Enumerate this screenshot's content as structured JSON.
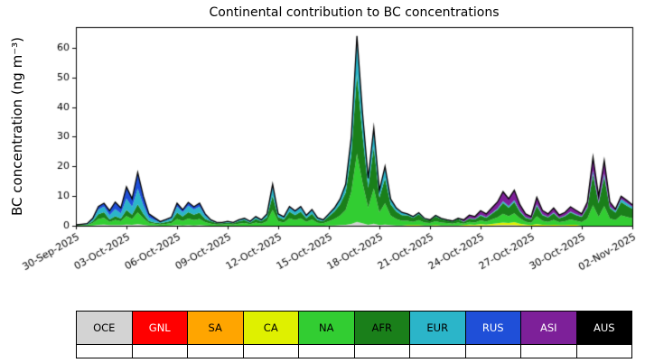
{
  "chart_data": {
    "type": "area",
    "title": "Continental contribution to BC concentrations",
    "ylabel": "BC concentration (ng m⁻³)",
    "xlabel": "",
    "ylim": [
      0,
      67
    ],
    "yticks": [
      0,
      10,
      20,
      30,
      40,
      50,
      60
    ],
    "x_domain_days": [
      0,
      33
    ],
    "points_per_day": 3,
    "grid": false,
    "legend_position": "bottom",
    "outline_color": "#000000",
    "xticks": [
      {
        "day": 0,
        "label": "30-Sep-2025"
      },
      {
        "day": 3,
        "label": "03-Oct-2025"
      },
      {
        "day": 6,
        "label": "06-Oct-2025"
      },
      {
        "day": 9,
        "label": "09-Oct-2025"
      },
      {
        "day": 12,
        "label": "12-Oct-2025"
      },
      {
        "day": 15,
        "label": "15-Oct-2025"
      },
      {
        "day": 18,
        "label": "18-Oct-2025"
      },
      {
        "day": 21,
        "label": "21-Oct-2025"
      },
      {
        "day": 24,
        "label": "24-Oct-2025"
      },
      {
        "day": 27,
        "label": "27-Oct-2025"
      },
      {
        "day": 30,
        "label": "30-Oct-2025"
      },
      {
        "day": 33,
        "label": "02-Nov-2025"
      }
    ],
    "series": [
      {
        "name": "OCE",
        "color": "#d3d3d3",
        "label_color": "#000000",
        "values": [
          0,
          0,
          0,
          0.1,
          0.3,
          0.4,
          0.2,
          0.2,
          0.2,
          0.4,
          0.3,
          0.5,
          0.3,
          0.1,
          0.1,
          0,
          0,
          0.1,
          0.2,
          0.1,
          0.2,
          0.1,
          0.2,
          0.1,
          0,
          0,
          0,
          0,
          0,
          0,
          0,
          0,
          0,
          0,
          0,
          0,
          0,
          0,
          0,
          0,
          0,
          0,
          0,
          0,
          0,
          0.1,
          0.1,
          0.2,
          0.3,
          0.6,
          1.3,
          0.8,
          0.3,
          0.7,
          0.2,
          0.4,
          0.2,
          0.1,
          0.1,
          0,
          0,
          0,
          0,
          0,
          0,
          0,
          0,
          0,
          0,
          0,
          0.1,
          0.1,
          0.1,
          0.1,
          0.1,
          0.2,
          0.2,
          0.2,
          0.2,
          0.1,
          0.1,
          0,
          0,
          0,
          0,
          0,
          0,
          0,
          0,
          0,
          0,
          0,
          0,
          0,
          0,
          0,
          0,
          0,
          0,
          0
        ]
      },
      {
        "name": "GNL",
        "color": "#ff0000",
        "label_color": "#ffffff",
        "values": [
          0,
          0,
          0,
          0,
          0,
          0,
          0,
          0,
          0,
          0,
          0,
          0,
          0,
          0,
          0,
          0,
          0,
          0,
          0,
          0,
          0,
          0,
          0,
          0,
          0,
          0,
          0,
          0,
          0,
          0,
          0,
          0,
          0,
          0,
          0,
          0,
          0,
          0,
          0,
          0,
          0,
          0,
          0,
          0,
          0,
          0,
          0,
          0,
          0,
          0,
          0,
          0,
          0,
          0,
          0,
          0,
          0,
          0,
          0,
          0,
          0,
          0,
          0,
          0,
          0,
          0,
          0,
          0,
          0,
          0,
          0,
          0,
          0,
          0,
          0,
          0,
          0,
          0,
          0,
          0,
          0,
          0,
          0,
          0,
          0,
          0,
          0,
          0,
          0,
          0,
          0,
          0,
          0,
          0,
          0,
          0,
          0,
          0,
          0,
          0
        ]
      },
      {
        "name": "SA",
        "color": "#ffa500",
        "label_color": "#000000",
        "values": [
          0,
          0,
          0,
          0,
          0,
          0,
          0,
          0,
          0,
          0,
          0,
          0,
          0,
          0,
          0,
          0,
          0,
          0,
          0,
          0,
          0,
          0,
          0,
          0,
          0,
          0,
          0,
          0,
          0,
          0,
          0,
          0,
          0,
          0,
          0,
          0,
          0,
          0,
          0,
          0,
          0,
          0,
          0,
          0,
          0,
          0,
          0,
          0,
          0,
          0,
          0,
          0,
          0,
          0,
          0,
          0,
          0,
          0,
          0,
          0,
          0,
          0,
          0,
          0,
          0,
          0,
          0,
          0,
          0,
          0,
          0,
          0,
          0,
          0,
          0,
          0,
          0,
          0,
          0,
          0,
          0,
          0,
          0,
          0,
          0,
          0,
          0,
          0,
          0,
          0,
          0,
          0,
          0,
          0,
          0,
          0,
          0,
          0,
          0,
          0
        ]
      },
      {
        "name": "CA",
        "color": "#dff000",
        "label_color": "#000000",
        "values": [
          0,
          0,
          0,
          0,
          0,
          0,
          0,
          0,
          0,
          0,
          0,
          0,
          0,
          0,
          0,
          0,
          0,
          0,
          0,
          0,
          0,
          0,
          0,
          0,
          0,
          0,
          0,
          0,
          0,
          0,
          0,
          0,
          0,
          0,
          0,
          0,
          0,
          0,
          0,
          0,
          0,
          0,
          0,
          0,
          0,
          0,
          0,
          0,
          0,
          0,
          0,
          0,
          0,
          0,
          0,
          0,
          0,
          0,
          0,
          0.2,
          0.2,
          0.2,
          0.1,
          0.1,
          0.2,
          0.1,
          0.1,
          0.1,
          0.1,
          0.2,
          0.3,
          0.2,
          0.4,
          0.3,
          0.5,
          0.6,
          0.9,
          0.7,
          1.0,
          0.6,
          0.3,
          0.2,
          0.5,
          0.3,
          0.2,
          0.3,
          0.2,
          0.2,
          0.3,
          0.3,
          0,
          0,
          0,
          0,
          0,
          0,
          0,
          0,
          0,
          0
        ]
      },
      {
        "name": "NA",
        "color": "#32cd32",
        "label_color": "#000000",
        "values": [
          0.1,
          0.2,
          0.2,
          0.8,
          2.0,
          2.3,
          1.1,
          1.8,
          1.3,
          2.9,
          2.0,
          4.0,
          2.2,
          0.9,
          0.6,
          0.4,
          0.6,
          0.8,
          2.1,
          1.5,
          2.2,
          1.8,
          2.1,
          1.1,
          0.7,
          0.4,
          0.4,
          0.5,
          0.4,
          0.7,
          0.9,
          0.5,
          1.1,
          0.7,
          1.5,
          5.3,
          1.5,
          1.1,
          2.5,
          1.9,
          2.5,
          1.3,
          2.1,
          1.0,
          0.8,
          1.4,
          2.2,
          3.2,
          5.0,
          10.8,
          23.0,
          13.7,
          5.8,
          11.9,
          4.3,
          7.2,
          3.2,
          2.2,
          1.6,
          1.5,
          1.1,
          1.7,
          1.0,
          0.8,
          1.3,
          1.0,
          0.8,
          0.6,
          1.0,
          0.5,
          0.9,
          0.8,
          1.3,
          1.0,
          1.5,
          2.0,
          2.9,
          2.3,
          3.0,
          1.8,
          1.0,
          0.8,
          2.7,
          1.4,
          1.1,
          1.7,
          1.0,
          1.3,
          1.8,
          1.4,
          1.2,
          2.4,
          6.9,
          3.0,
          6.6,
          2.4,
          1.9,
          3.5,
          3.0,
          2.5
        ]
      },
      {
        "name": "AFR",
        "color": "#1a7f1a",
        "label_color": "#000000",
        "values": [
          0.1,
          0.1,
          0.2,
          0.6,
          1.6,
          1.9,
          0.8,
          1.2,
          0.9,
          2.0,
          1.4,
          2.7,
          1.5,
          0.6,
          0.4,
          0.4,
          0.6,
          0.8,
          2.1,
          1.5,
          2.2,
          1.8,
          2.1,
          1.1,
          0.8,
          0.5,
          0.4,
          0.6,
          0.4,
          0.8,
          1.0,
          0.6,
          1.2,
          0.8,
          1.4,
          4.8,
          1.4,
          1.0,
          2.2,
          1.7,
          2.2,
          1.2,
          1.9,
          0.9,
          0.7,
          1.7,
          2.5,
          3.8,
          5.9,
          12.6,
          26.9,
          16.0,
          6.7,
          13.9,
          5.0,
          8.4,
          3.8,
          2.5,
          1.9,
          1.8,
          1.4,
          2.0,
          1.1,
          0.9,
          1.6,
          1.1,
          0.9,
          0.7,
          1.1,
          0.6,
          1.1,
          1.0,
          1.6,
          1.3,
          1.9,
          2.6,
          3.7,
          2.9,
          3.8,
          2.2,
          1.3,
          1.1,
          3.5,
          1.9,
          1.5,
          2.2,
          1.3,
          1.7,
          2.4,
          1.9,
          1.8,
          3.6,
          10.4,
          4.5,
          9.9,
          3.6,
          2.5,
          4.5,
          3.8,
          3.2
        ]
      },
      {
        "name": "EUR",
        "color": "#2bb5c9",
        "label_color": "#000000",
        "values": [
          0.1,
          0.1,
          0.2,
          0.6,
          1.6,
          1.9,
          1.5,
          2.4,
          1.8,
          3.9,
          2.7,
          5.4,
          3.0,
          1.2,
          0.8,
          0.4,
          0.6,
          0.8,
          2.1,
          1.5,
          2.2,
          1.8,
          2.1,
          1.1,
          0.4,
          0.2,
          0.2,
          0.3,
          0.2,
          0.4,
          0.5,
          0.3,
          0.6,
          0.4,
          0.9,
          3.1,
          0.9,
          0.7,
          1.4,
          1.1,
          1.4,
          0.8,
          1.2,
          0.6,
          0.4,
          0.7,
          1.1,
          1.6,
          2.5,
          5.4,
          11.5,
          6.8,
          2.9,
          5.9,
          2.2,
          3.6,
          1.6,
          1.1,
          0.8,
          0.5,
          0.4,
          0.5,
          0.3,
          0.2,
          0.4,
          0.3,
          0.2,
          0.2,
          0.3,
          0.1,
          0.2,
          0.2,
          0.3,
          0.2,
          0.3,
          0.4,
          0.6,
          0.5,
          0.6,
          0.4,
          0.2,
          0.2,
          0.5,
          0.3,
          0.2,
          0.3,
          0.2,
          0.2,
          0.3,
          0.3,
          0.2,
          0.4,
          1.2,
          0.5,
          1.1,
          0.4,
          0.6,
          1.0,
          0.9,
          0.7
        ]
      },
      {
        "name": "RUS",
        "color": "#1f4fd8",
        "label_color": "#ffffff",
        "values": [
          0,
          0.1,
          0.1,
          0.4,
          1.0,
          1.1,
          1.5,
          2.4,
          1.8,
          3.9,
          2.7,
          5.4,
          3.0,
          1.2,
          0.8,
          0.2,
          0.3,
          0.4,
          1.1,
          0.8,
          1.1,
          0.9,
          1.1,
          0.6,
          0.1,
          0.1,
          0.1,
          0.1,
          0.1,
          0.1,
          0.1,
          0.1,
          0.2,
          0.1,
          0.2,
          0.8,
          0.2,
          0.2,
          0.4,
          0.3,
          0.4,
          0.2,
          0.3,
          0.2,
          0.1,
          0.1,
          0.1,
          0.2,
          0.3,
          0.6,
          1.3,
          0.7,
          0.3,
          0.6,
          0.2,
          0.4,
          0.2,
          0.1,
          0.1,
          0,
          0,
          0,
          0,
          0,
          0,
          0,
          0,
          0,
          0,
          0,
          0,
          0,
          0,
          0,
          0,
          0,
          0,
          0,
          0,
          0,
          0,
          0,
          0,
          0,
          0,
          0,
          0,
          0,
          0,
          0,
          0,
          0,
          0,
          0,
          0,
          0,
          0,
          0,
          0,
          0
        ]
      },
      {
        "name": "ASI",
        "color": "#7d2099",
        "label_color": "#ffffff",
        "values": [
          0,
          0,
          0,
          0,
          0,
          0,
          0,
          0,
          0,
          0,
          0,
          0,
          0,
          0,
          0,
          0,
          0,
          0,
          0,
          0,
          0,
          0,
          0,
          0,
          0,
          0,
          0,
          0,
          0,
          0,
          0,
          0,
          0,
          0,
          0,
          0,
          0,
          0,
          0,
          0,
          0,
          0,
          0,
          0,
          0,
          0,
          0,
          0,
          0,
          0,
          0,
          0,
          0,
          0,
          0,
          0,
          0,
          0,
          0,
          0,
          0,
          0,
          0,
          0,
          0,
          0,
          0,
          0,
          0,
          0.6,
          1.0,
          0.8,
          1.4,
          1.1,
          1.7,
          2.2,
          3.2,
          2.5,
          3.4,
          2.0,
          1.1,
          0.8,
          2.4,
          1.3,
          1.0,
          1.5,
          0.9,
          1.1,
          1.6,
          1.3,
          0.8,
          1.6,
          4.6,
          2.0,
          4.4,
          1.6,
          0.6,
          1.0,
          0.9,
          0.7
        ]
      },
      {
        "name": "AUS",
        "color": "#000000",
        "label_color": "#ffffff",
        "values": [
          0,
          0,
          0,
          0,
          0,
          0,
          0,
          0,
          0,
          0,
          0,
          0,
          0,
          0,
          0,
          0,
          0,
          0,
          0,
          0,
          0,
          0,
          0,
          0,
          0,
          0,
          0,
          0,
          0,
          0,
          0,
          0,
          0,
          0,
          0,
          0,
          0,
          0,
          0,
          0,
          0,
          0,
          0,
          0,
          0,
          0,
          0,
          0,
          0,
          0,
          0,
          0,
          0,
          0,
          0,
          0,
          0,
          0,
          0,
          0,
          0,
          0,
          0,
          0,
          0,
          0,
          0,
          0,
          0,
          0,
          0,
          0,
          0,
          0,
          0,
          0,
          0,
          0,
          0,
          0,
          0,
          0,
          0,
          0,
          0,
          0,
          0,
          0,
          0,
          0,
          0,
          0,
          0,
          0,
          0,
          0,
          0,
          0,
          0,
          0
        ]
      }
    ]
  }
}
